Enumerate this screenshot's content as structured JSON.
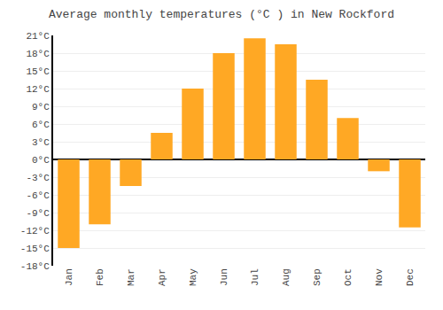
{
  "chart_data": {
    "type": "bar",
    "title": "Average monthly temperatures (°C ) in New Rockford",
    "categories": [
      "Jan",
      "Feb",
      "Mar",
      "Apr",
      "May",
      "Jun",
      "Jul",
      "Aug",
      "Sep",
      "Oct",
      "Nov",
      "Dec"
    ],
    "values": [
      -15.0,
      -11.0,
      -4.5,
      4.5,
      12.0,
      18.0,
      20.5,
      19.5,
      13.5,
      7.0,
      -2.0,
      -11.5
    ],
    "color": "#FFA824",
    "ylim": [
      -18,
      21
    ],
    "yticks": [
      {
        "value": -18,
        "label": "-18°C"
      },
      {
        "value": -15,
        "label": "-15°C"
      },
      {
        "value": -12,
        "label": "-12°C"
      },
      {
        "value": -9,
        "label": "-9°C"
      },
      {
        "value": -6,
        "label": "-6°C"
      },
      {
        "value": -3,
        "label": "-3°C"
      },
      {
        "value": 0,
        "label": "0°C"
      },
      {
        "value": 3,
        "label": "3°C"
      },
      {
        "value": 6,
        "label": "6°C"
      },
      {
        "value": 9,
        "label": "9°C"
      },
      {
        "value": 12,
        "label": "12°C"
      },
      {
        "value": 15,
        "label": "15°C"
      },
      {
        "value": 18,
        "label": "18°C"
      },
      {
        "value": 21,
        "label": "21°C"
      }
    ],
    "grid": true
  }
}
